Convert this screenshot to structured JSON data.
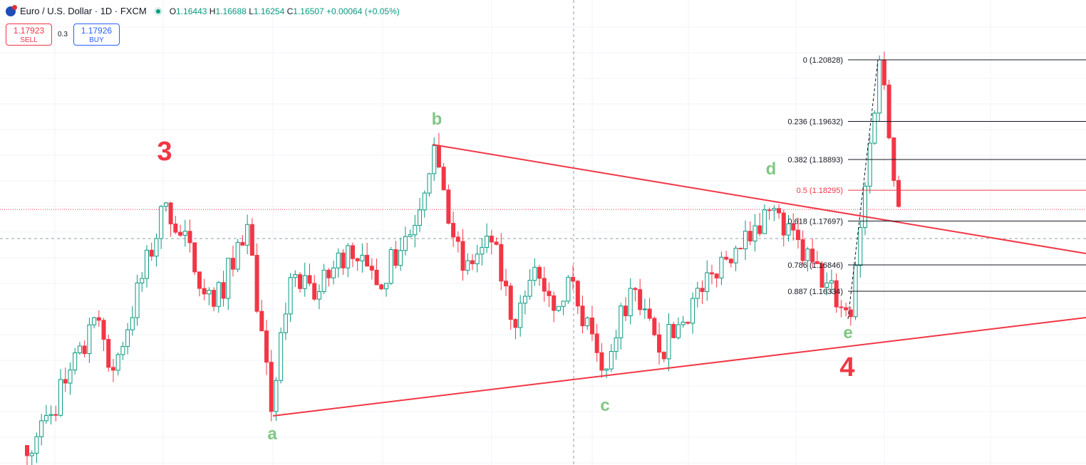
{
  "header": {
    "symbol": "Euro / U.S. Dollar · 1D · FXCM",
    "open_label": "O",
    "open": "1.16443",
    "high_label": "H",
    "high": "1.16688",
    "low_label": "L",
    "low": "1.16254",
    "close_label": "C",
    "close": "1.16507",
    "change": "+0.00064 (+0.05%)"
  },
  "trade": {
    "sell_price": "1.17923",
    "sell_label": "SELL",
    "spread": "0.3",
    "buy_price": "1.17926",
    "buy_label": "BUY"
  },
  "colors": {
    "up": "#089981",
    "down": "#f23645",
    "trend": "#f23645",
    "wave_label": "#81c784",
    "count_label": "#f23645"
  },
  "chart_data": {
    "type": "candlestick",
    "symbol": "EURUSD 1D",
    "waypoints": [
      [
        0,
        1.1314
      ],
      [
        15,
        1.1577
      ],
      [
        18,
        1.148
      ],
      [
        29,
        1.1805
      ],
      [
        39,
        1.1604
      ],
      [
        46,
        1.1763
      ],
      [
        51,
        1.14
      ],
      [
        55,
        1.166
      ],
      [
        60,
        1.1618
      ],
      [
        67,
        1.1722
      ],
      [
        73,
        1.1646
      ],
      [
        80,
        1.1743
      ],
      [
        85,
        1.1916
      ],
      [
        91,
        1.1674
      ],
      [
        97,
        1.1729
      ],
      [
        102,
        1.1563
      ],
      [
        106,
        1.168
      ],
      [
        111,
        1.1604
      ],
      [
        114,
        1.1653
      ],
      [
        120,
        1.148
      ],
      [
        126,
        1.1639
      ],
      [
        132,
        1.1515
      ],
      [
        143,
        1.1667
      ],
      [
        150,
        1.175
      ],
      [
        155,
        1.1791
      ],
      [
        172,
        1.1584
      ],
      [
        178,
        1.20828
      ],
      [
        182,
        1.1798
      ]
    ],
    "current_price": 1.17923,
    "fib": [
      {
        "label": "0 (1.20828)",
        "price": 1.20828
      },
      {
        "label": "0.236 (1.19632)",
        "price": 1.19632
      },
      {
        "label": "0.382 (1.18893)",
        "price": 1.18893
      },
      {
        "label": "0.5 (1.18295)",
        "price": 1.18295,
        "highlight": true
      },
      {
        "label": "0.618 (1.17697)",
        "price": 1.17697
      },
      {
        "label": "0.786 (1.16846)",
        "price": 1.16846
      },
      {
        "label": "0.887 (1.16334)",
        "price": 1.16334
      }
    ],
    "wave_labels": [
      "a",
      "b",
      "c",
      "d",
      "e"
    ],
    "count_labels": [
      "3",
      "4"
    ]
  }
}
